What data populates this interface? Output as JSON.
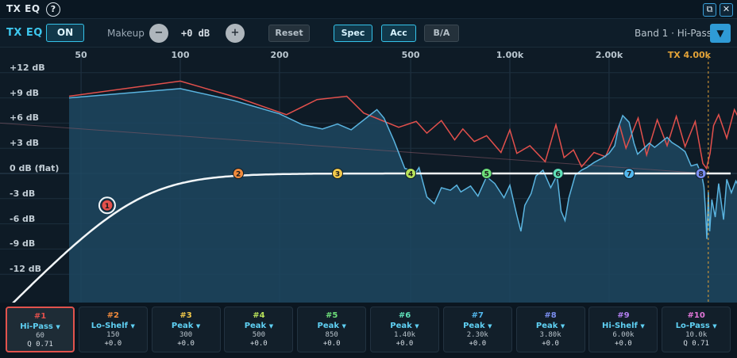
{
  "window": {
    "title": "TX EQ",
    "help_glyph": "?",
    "restore_glyph": "⧉",
    "close_glyph": "✕"
  },
  "toolbar": {
    "title": "TX EQ",
    "on_label": "ON",
    "makeup_label": "Makeup",
    "minus_glyph": "−",
    "makeup_value": "+0 dB",
    "plus_glyph": "+",
    "reset_label": "Reset",
    "spec_label": "Spec",
    "acc_label": "Acc",
    "ab_label": "B/A",
    "band_select": "Band 1 · Hi-Pass",
    "dropdown_glyph": "▼"
  },
  "graph": {
    "freq_labels": [
      {
        "label": "50",
        "f": 50
      },
      {
        "label": "100",
        "f": 100
      },
      {
        "label": "200",
        "f": 200
      },
      {
        "label": "500",
        "f": 500
      },
      {
        "label": "1.00k",
        "f": 1000
      },
      {
        "label": "2.00k",
        "f": 2000
      }
    ],
    "tx_label": "TX 4.00k",
    "tx_freq": 4000,
    "db_labels": [
      {
        "label": "+12 dB",
        "db": 12
      },
      {
        "label": "+9 dB",
        "db": 9
      },
      {
        "label": "+6 dB",
        "db": 6
      },
      {
        "label": "+3 dB",
        "db": 3
      },
      {
        "label": "0 dB (flat)",
        "db": 0
      },
      {
        "label": "-3 dB",
        "db": -3
      },
      {
        "label": "-6 dB",
        "db": -6
      },
      {
        "label": "-9 dB",
        "db": -9
      },
      {
        "label": "-12 dB",
        "db": -12
      }
    ],
    "colors": {
      "spectrum_line": "#5ab4e0",
      "spectrum_fill": "#1d4660",
      "peak_line": "#e2504c",
      "eq_curve": "#f2f6f8",
      "tx_marker": "#e3a338"
    },
    "nodes": [
      {
        "label": "1",
        "f": 60,
        "db": -3.8,
        "color": "#e2504c"
      },
      {
        "label": "2",
        "f": 150,
        "db": 0,
        "color": "#f08a3c"
      },
      {
        "label": "3",
        "f": 300,
        "db": 0,
        "color": "#f2c94a"
      },
      {
        "label": "4",
        "f": 500,
        "db": 0,
        "color": "#b8e25a"
      },
      {
        "label": "5",
        "f": 850,
        "db": 0,
        "color": "#6ee07a"
      },
      {
        "label": "6",
        "f": 1400,
        "db": 0,
        "color": "#5fe0b8"
      },
      {
        "label": "7",
        "f": 2300,
        "db": 0,
        "color": "#52b8ee"
      },
      {
        "label": "8",
        "f": 3800,
        "db": 0,
        "color": "#7a8ef0"
      }
    ],
    "peak_trace": [
      [
        46,
        9.2
      ],
      [
        100,
        11.0
      ],
      [
        150,
        9.0
      ],
      [
        210,
        7.0
      ],
      [
        260,
        8.8
      ],
      [
        320,
        9.2
      ],
      [
        360,
        7.2
      ],
      [
        460,
        5.5
      ],
      [
        520,
        6.2
      ],
      [
        560,
        4.8
      ],
      [
        620,
        6.3
      ],
      [
        680,
        4.0
      ],
      [
        720,
        5.3
      ],
      [
        780,
        3.8
      ],
      [
        850,
        4.5
      ],
      [
        940,
        2.5
      ],
      [
        1000,
        5.2
      ],
      [
        1050,
        2.4
      ],
      [
        1150,
        3.3
      ],
      [
        1280,
        1.4
      ],
      [
        1380,
        5.8
      ],
      [
        1460,
        1.9
      ],
      [
        1560,
        2.8
      ],
      [
        1650,
        0.8
      ],
      [
        1800,
        2.5
      ],
      [
        1950,
        2.0
      ],
      [
        2150,
        5.8
      ],
      [
        2250,
        3.0
      ],
      [
        2450,
        6.6
      ],
      [
        2600,
        2.2
      ],
      [
        2800,
        6.4
      ],
      [
        3000,
        3.3
      ],
      [
        3200,
        6.8
      ],
      [
        3400,
        3.2
      ],
      [
        3650,
        6.2
      ],
      [
        3850,
        1.2
      ],
      [
        3950,
        0.6
      ],
      [
        4050,
        2.4
      ],
      [
        4150,
        5.7
      ],
      [
        4300,
        7.0
      ],
      [
        4550,
        4.2
      ],
      [
        4800,
        7.6
      ],
      [
        5050,
        5.9
      ],
      [
        5300,
        7.1
      ],
      [
        5500,
        7.5
      ]
    ],
    "spectrum_trace": [
      [
        46,
        9.0
      ],
      [
        100,
        10.1
      ],
      [
        145,
        8.7
      ],
      [
        200,
        7.1
      ],
      [
        235,
        5.8
      ],
      [
        270,
        5.3
      ],
      [
        300,
        5.9
      ],
      [
        330,
        5.2
      ],
      [
        395,
        7.6
      ],
      [
        415,
        6.6
      ],
      [
        445,
        3.9
      ],
      [
        480,
        0.6
      ],
      [
        520,
        0.2
      ],
      [
        530,
        0.7
      ],
      [
        560,
        -2.8
      ],
      [
        590,
        -3.6
      ],
      [
        620,
        -1.7
      ],
      [
        660,
        -2.0
      ],
      [
        690,
        -1.4
      ],
      [
        710,
        -2.2
      ],
      [
        760,
        -1.5
      ],
      [
        800,
        -2.7
      ],
      [
        850,
        -0.4
      ],
      [
        900,
        -1.2
      ],
      [
        960,
        -2.9
      ],
      [
        1000,
        -1.4
      ],
      [
        1050,
        -5.0
      ],
      [
        1080,
        -6.9
      ],
      [
        1110,
        -3.8
      ],
      [
        1160,
        -2.4
      ],
      [
        1200,
        -0.3
      ],
      [
        1260,
        0.4
      ],
      [
        1330,
        -1.7
      ],
      [
        1390,
        -0.2
      ],
      [
        1430,
        -4.5
      ],
      [
        1470,
        -5.6
      ],
      [
        1510,
        -2.9
      ],
      [
        1580,
        -0.2
      ],
      [
        1650,
        0.4
      ],
      [
        1710,
        0.7
      ],
      [
        1800,
        1.3
      ],
      [
        1920,
        1.9
      ],
      [
        2000,
        2.4
      ],
      [
        2080,
        3.3
      ],
      [
        2140,
        5.6
      ],
      [
        2200,
        6.9
      ],
      [
        2300,
        6.1
      ],
      [
        2380,
        3.6
      ],
      [
        2440,
        2.3
      ],
      [
        2520,
        2.8
      ],
      [
        2650,
        3.6
      ],
      [
        2750,
        3.1
      ],
      [
        2850,
        3.6
      ],
      [
        3000,
        4.3
      ],
      [
        3100,
        3.7
      ],
      [
        3250,
        3.2
      ],
      [
        3400,
        2.6
      ],
      [
        3550,
        0.9
      ],
      [
        3700,
        1.1
      ],
      [
        3820,
        -0.2
      ],
      [
        3880,
        -1.6
      ],
      [
        3920,
        -4.2
      ],
      [
        3960,
        -7.8
      ],
      [
        4000,
        -2.2
      ],
      [
        4040,
        -6.9
      ],
      [
        4100,
        -3.1
      ],
      [
        4200,
        -5.2
      ],
      [
        4300,
        -1.2
      ],
      [
        4450,
        -5.5
      ],
      [
        4550,
        -0.7
      ],
      [
        4700,
        -2.3
      ],
      [
        4850,
        -0.9
      ],
      [
        5000,
        -1.9
      ]
    ]
  },
  "bands": [
    {
      "num": "#1",
      "type": "Hi-Pass",
      "freq": "60",
      "extra": "Q 0.71",
      "color": "#e2504c",
      "selected": true
    },
    {
      "num": "#2",
      "type": "Lo-Shelf",
      "freq": "150",
      "extra": "+0.0",
      "color": "#f08a3c",
      "selected": false
    },
    {
      "num": "#3",
      "type": "Peak",
      "freq": "300",
      "extra": "+0.0",
      "color": "#f2c94a",
      "selected": false
    },
    {
      "num": "#4",
      "type": "Peak",
      "freq": "500",
      "extra": "+0.0",
      "color": "#b8e25a",
      "selected": false
    },
    {
      "num": "#5",
      "type": "Peak",
      "freq": "850",
      "extra": "+0.0",
      "color": "#6ee07a",
      "selected": false
    },
    {
      "num": "#6",
      "type": "Peak",
      "freq": "1.40k",
      "extra": "+0.0",
      "color": "#5fe0b8",
      "selected": false
    },
    {
      "num": "#7",
      "type": "Peak",
      "freq": "2.30k",
      "extra": "+0.0",
      "color": "#52b8ee",
      "selected": false
    },
    {
      "num": "#8",
      "type": "Peak",
      "freq": "3.80k",
      "extra": "+0.0",
      "color": "#7a8ef0",
      "selected": false
    },
    {
      "num": "#9",
      "type": "Hi-Shelf",
      "freq": "6.00k",
      "extra": "+0.0",
      "color": "#b27ff0",
      "selected": false
    },
    {
      "num": "#10",
      "type": "Lo-Pass",
      "freq": "10.0k",
      "extra": "Q 0.71",
      "color": "#e276d8",
      "selected": false
    }
  ]
}
